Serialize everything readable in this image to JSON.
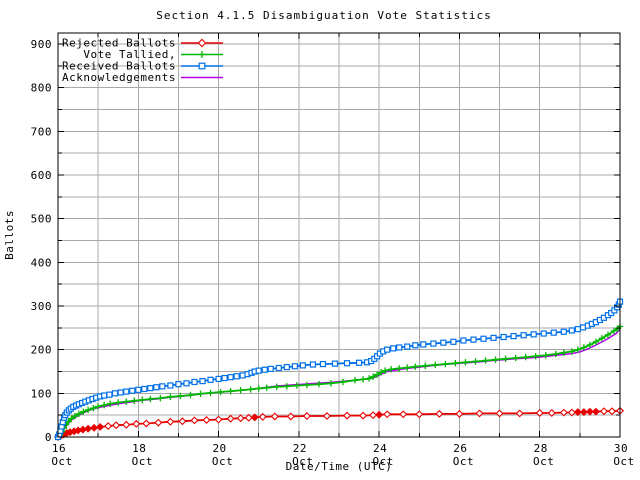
{
  "title": "Section 4.1.5 Disambiguation Vote Statistics",
  "chart_data": {
    "type": "line",
    "title": "Section 4.1.5 Disambiguation Vote Statistics",
    "xlabel": "Date/Time (UTC)",
    "ylabel": "Ballots",
    "x_unit": "days since 16 Oct 00:00 UTC",
    "xlim": [
      0,
      14
    ],
    "ylim": [
      0,
      925
    ],
    "grid": "on",
    "grid_color": "#a8a8a8",
    "legend_position": "top-left-inside",
    "x_major_ticks": [
      {
        "day": 0,
        "line1": "16",
        "line2": "Oct"
      },
      {
        "day": 2,
        "line1": "18",
        "line2": "Oct"
      },
      {
        "day": 4,
        "line1": "20",
        "line2": "Oct"
      },
      {
        "day": 6,
        "line1": "22",
        "line2": "Oct"
      },
      {
        "day": 8,
        "line1": "24",
        "line2": "Oct"
      },
      {
        "day": 10,
        "line1": "26",
        "line2": "Oct"
      },
      {
        "day": 12,
        "line1": "28",
        "line2": "Oct"
      },
      {
        "day": 14,
        "line1": "30",
        "line2": "Oct"
      }
    ],
    "x_minor_step_days": 1,
    "y_ticks": [
      0,
      100,
      200,
      300,
      400,
      500,
      600,
      700,
      800,
      900
    ],
    "y_minor_step": 50,
    "series": [
      {
        "label": "Rejected Ballots",
        "color": "#e80000",
        "marker": "diamond",
        "points": [
          [
            0,
            0
          ],
          [
            0.07,
            3
          ],
          [
            0.14,
            6
          ],
          [
            0.22,
            9
          ],
          [
            0.3,
            11
          ],
          [
            0.4,
            13
          ],
          [
            0.5,
            15
          ],
          [
            0.62,
            17
          ],
          [
            0.75,
            19
          ],
          [
            0.9,
            21
          ],
          [
            1.05,
            23
          ],
          [
            1.25,
            25
          ],
          [
            1.45,
            27
          ],
          [
            1.7,
            28
          ],
          [
            1.95,
            30
          ],
          [
            2.2,
            31
          ],
          [
            2.5,
            33
          ],
          [
            2.8,
            35
          ],
          [
            3.1,
            36
          ],
          [
            3.4,
            38
          ],
          [
            3.7,
            39
          ],
          [
            4.0,
            40
          ],
          [
            4.3,
            42
          ],
          [
            4.55,
            43
          ],
          [
            4.75,
            44
          ],
          [
            4.9,
            45
          ],
          [
            5.1,
            46
          ],
          [
            5.4,
            47
          ],
          [
            5.8,
            47
          ],
          [
            6.2,
            48
          ],
          [
            6.7,
            48
          ],
          [
            7.2,
            49
          ],
          [
            7.6,
            49
          ],
          [
            7.85,
            50
          ],
          [
            8.0,
            51
          ],
          [
            8.2,
            52
          ],
          [
            8.6,
            52
          ],
          [
            9.0,
            52
          ],
          [
            9.5,
            53
          ],
          [
            10.0,
            53
          ],
          [
            10.5,
            54
          ],
          [
            11.0,
            54
          ],
          [
            11.5,
            54
          ],
          [
            12.0,
            55
          ],
          [
            12.3,
            55
          ],
          [
            12.6,
            56
          ],
          [
            12.8,
            56
          ],
          [
            12.95,
            57
          ],
          [
            13.1,
            57
          ],
          [
            13.25,
            58
          ],
          [
            13.4,
            58
          ],
          [
            13.6,
            59
          ],
          [
            13.8,
            59
          ],
          [
            14,
            60
          ]
        ]
      },
      {
        "label": "Vote Tallied,",
        "color": "#00b800",
        "marker": "plus",
        "points": [
          [
            0,
            0
          ],
          [
            0.05,
            5
          ],
          [
            0.1,
            12
          ],
          [
            0.15,
            20
          ],
          [
            0.2,
            28
          ],
          [
            0.26,
            35
          ],
          [
            0.33,
            42
          ],
          [
            0.42,
            48
          ],
          [
            0.52,
            53
          ],
          [
            0.63,
            58
          ],
          [
            0.75,
            62
          ],
          [
            0.88,
            66
          ],
          [
            1.0,
            70
          ],
          [
            1.15,
            73
          ],
          [
            1.3,
            76
          ],
          [
            1.5,
            79
          ],
          [
            1.7,
            81
          ],
          [
            1.9,
            83
          ],
          [
            2.1,
            85
          ],
          [
            2.3,
            87
          ],
          [
            2.55,
            89
          ],
          [
            2.8,
            92
          ],
          [
            3.05,
            94
          ],
          [
            3.3,
            96
          ],
          [
            3.55,
            99
          ],
          [
            3.8,
            101
          ],
          [
            4.05,
            103
          ],
          [
            4.3,
            105
          ],
          [
            4.55,
            107
          ],
          [
            4.8,
            109
          ],
          [
            5.0,
            111
          ],
          [
            5.2,
            113
          ],
          [
            5.45,
            115
          ],
          [
            5.7,
            116
          ],
          [
            5.95,
            118
          ],
          [
            6.2,
            119
          ],
          [
            6.5,
            121
          ],
          [
            6.8,
            123
          ],
          [
            7.1,
            126
          ],
          [
            7.4,
            130
          ],
          [
            7.6,
            132
          ],
          [
            7.75,
            134
          ],
          [
            7.85,
            138
          ],
          [
            7.95,
            143
          ],
          [
            8.05,
            148
          ],
          [
            8.15,
            152
          ],
          [
            8.3,
            155
          ],
          [
            8.5,
            157
          ],
          [
            8.7,
            159
          ],
          [
            8.9,
            161
          ],
          [
            9.15,
            163
          ],
          [
            9.4,
            165
          ],
          [
            9.65,
            167
          ],
          [
            9.9,
            169
          ],
          [
            10.15,
            171
          ],
          [
            10.4,
            173
          ],
          [
            10.65,
            175
          ],
          [
            10.9,
            177
          ],
          [
            11.15,
            179
          ],
          [
            11.4,
            181
          ],
          [
            11.65,
            183
          ],
          [
            11.9,
            185
          ],
          [
            12.15,
            187
          ],
          [
            12.4,
            190
          ],
          [
            12.6,
            193
          ],
          [
            12.8,
            196
          ],
          [
            12.95,
            200
          ],
          [
            13.1,
            205
          ],
          [
            13.25,
            211
          ],
          [
            13.4,
            218
          ],
          [
            13.55,
            226
          ],
          [
            13.7,
            234
          ],
          [
            13.85,
            243
          ],
          [
            13.95,
            249
          ],
          [
            14,
            253
          ]
        ]
      },
      {
        "label": "Received Ballots",
        "color": "#0070e8",
        "marker": "square",
        "points": [
          [
            0,
            0
          ],
          [
            0.03,
            6
          ],
          [
            0.06,
            14
          ],
          [
            0.09,
            24
          ],
          [
            0.12,
            34
          ],
          [
            0.15,
            44
          ],
          [
            0.18,
            50
          ],
          [
            0.22,
            56
          ],
          [
            0.27,
            61
          ],
          [
            0.32,
            65
          ],
          [
            0.38,
            69
          ],
          [
            0.45,
            72
          ],
          [
            0.52,
            75
          ],
          [
            0.6,
            78
          ],
          [
            0.68,
            81
          ],
          [
            0.77,
            84
          ],
          [
            0.86,
            87
          ],
          [
            0.95,
            90
          ],
          [
            1.05,
            93
          ],
          [
            1.15,
            95
          ],
          [
            1.28,
            97
          ],
          [
            1.42,
            100
          ],
          [
            1.56,
            102
          ],
          [
            1.7,
            104
          ],
          [
            1.85,
            106
          ],
          [
            2.0,
            108
          ],
          [
            2.15,
            110
          ],
          [
            2.3,
            112
          ],
          [
            2.45,
            114
          ],
          [
            2.6,
            116
          ],
          [
            2.8,
            118
          ],
          [
            3.0,
            121
          ],
          [
            3.2,
            123
          ],
          [
            3.4,
            126
          ],
          [
            3.6,
            128
          ],
          [
            3.8,
            131
          ],
          [
            4.0,
            133
          ],
          [
            4.15,
            135
          ],
          [
            4.3,
            137
          ],
          [
            4.45,
            139
          ],
          [
            4.6,
            141
          ],
          [
            4.72,
            144
          ],
          [
            4.82,
            147
          ],
          [
            4.9,
            150
          ],
          [
            5.0,
            152
          ],
          [
            5.15,
            154
          ],
          [
            5.3,
            156
          ],
          [
            5.5,
            158
          ],
          [
            5.7,
            160
          ],
          [
            5.9,
            162
          ],
          [
            6.1,
            164
          ],
          [
            6.35,
            166
          ],
          [
            6.6,
            167
          ],
          [
            6.9,
            168
          ],
          [
            7.2,
            169
          ],
          [
            7.5,
            170
          ],
          [
            7.7,
            171
          ],
          [
            7.8,
            174
          ],
          [
            7.88,
            179
          ],
          [
            7.95,
            185
          ],
          [
            8.02,
            191
          ],
          [
            8.1,
            196
          ],
          [
            8.2,
            200
          ],
          [
            8.35,
            203
          ],
          [
            8.5,
            205
          ],
          [
            8.7,
            207
          ],
          [
            8.9,
            210
          ],
          [
            9.1,
            212
          ],
          [
            9.35,
            214
          ],
          [
            9.6,
            216
          ],
          [
            9.85,
            218
          ],
          [
            10.1,
            221
          ],
          [
            10.35,
            223
          ],
          [
            10.6,
            225
          ],
          [
            10.85,
            227
          ],
          [
            11.1,
            229
          ],
          [
            11.35,
            231
          ],
          [
            11.6,
            233
          ],
          [
            11.85,
            235
          ],
          [
            12.1,
            237
          ],
          [
            12.35,
            239
          ],
          [
            12.6,
            241
          ],
          [
            12.8,
            244
          ],
          [
            12.95,
            247
          ],
          [
            13.08,
            251
          ],
          [
            13.2,
            255
          ],
          [
            13.3,
            259
          ],
          [
            13.4,
            263
          ],
          [
            13.5,
            268
          ],
          [
            13.6,
            273
          ],
          [
            13.7,
            279
          ],
          [
            13.78,
            284
          ],
          [
            13.86,
            290
          ],
          [
            13.93,
            297
          ],
          [
            13.97,
            303
          ],
          [
            14,
            310
          ]
        ]
      },
      {
        "label": "Acknowledgements",
        "color": "#b400f0",
        "marker": "none",
        "points": [
          [
            0,
            0
          ],
          [
            0.08,
            8
          ],
          [
            0.15,
            18
          ],
          [
            0.25,
            30
          ],
          [
            0.35,
            40
          ],
          [
            0.5,
            49
          ],
          [
            0.65,
            56
          ],
          [
            0.8,
            62
          ],
          [
            1.0,
            67
          ],
          [
            1.25,
            72
          ],
          [
            1.5,
            76
          ],
          [
            1.8,
            80
          ],
          [
            2.1,
            84
          ],
          [
            2.45,
            87
          ],
          [
            2.8,
            91
          ],
          [
            3.15,
            94
          ],
          [
            3.5,
            98
          ],
          [
            3.85,
            101
          ],
          [
            4.2,
            104
          ],
          [
            4.55,
            107
          ],
          [
            4.9,
            110
          ],
          [
            5.2,
            114
          ],
          [
            5.5,
            117
          ],
          [
            5.8,
            119
          ],
          [
            6.1,
            121
          ],
          [
            6.45,
            123
          ],
          [
            6.8,
            125
          ],
          [
            7.15,
            128
          ],
          [
            7.5,
            131
          ],
          [
            7.75,
            133
          ],
          [
            7.9,
            137
          ],
          [
            8.05,
            144
          ],
          [
            8.2,
            150
          ],
          [
            8.4,
            153
          ],
          [
            8.7,
            157
          ],
          [
            9.0,
            160
          ],
          [
            9.3,
            163
          ],
          [
            9.6,
            166
          ],
          [
            9.9,
            168
          ],
          [
            10.2,
            170
          ],
          [
            10.5,
            172
          ],
          [
            10.8,
            175
          ],
          [
            11.1,
            177
          ],
          [
            11.4,
            179
          ],
          [
            11.7,
            181
          ],
          [
            12.0,
            183
          ],
          [
            12.3,
            186
          ],
          [
            12.6,
            189
          ],
          [
            12.85,
            192
          ],
          [
            13.0,
            195
          ],
          [
            13.15,
            200
          ],
          [
            13.3,
            206
          ],
          [
            13.45,
            213
          ],
          [
            13.6,
            220
          ],
          [
            13.75,
            228
          ],
          [
            13.9,
            237
          ],
          [
            14,
            247
          ]
        ]
      }
    ]
  }
}
